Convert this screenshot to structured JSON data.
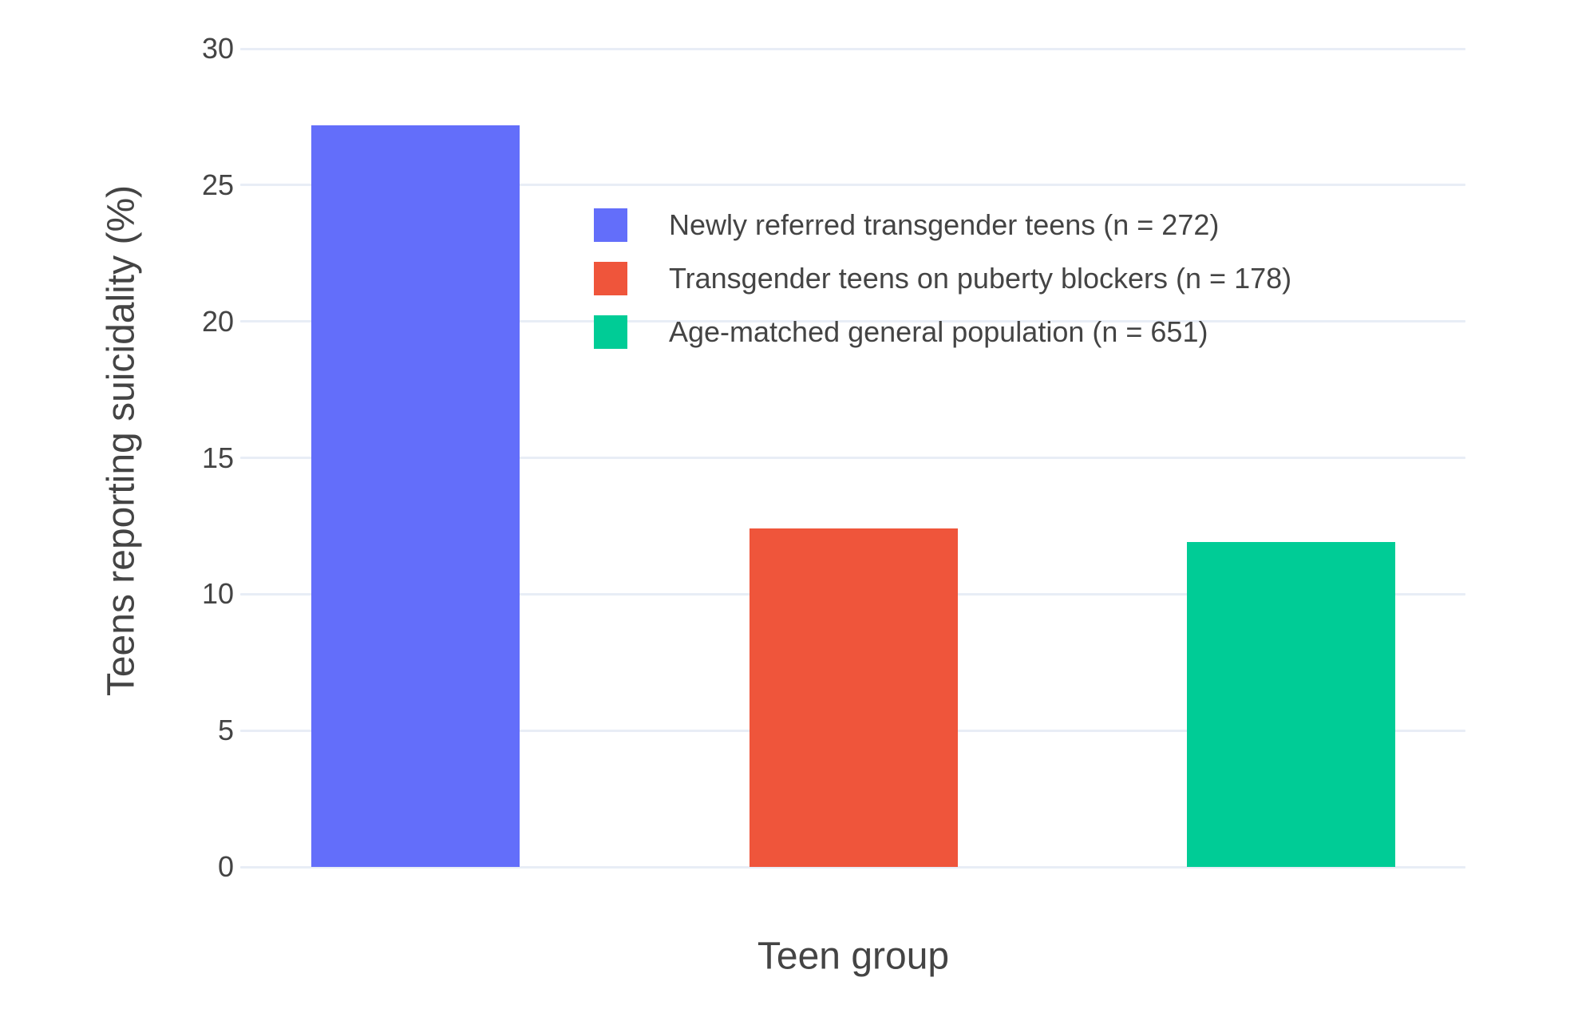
{
  "chart_data": {
    "type": "bar",
    "title": "",
    "xlabel": "Teen group",
    "ylabel": "Teens reporting suicidality (%)",
    "ylim": [
      0,
      30
    ],
    "yticks": [
      0,
      5,
      10,
      15,
      20,
      25,
      30
    ],
    "grid": true,
    "legend_position": "top-right-inside",
    "series": [
      {
        "label": "Newly referred transgender teens (n = 272)",
        "value": 27.2,
        "color": "#636EFA"
      },
      {
        "label": "Transgender teens on puberty blockers (n = 178)",
        "value": 12.4,
        "color": "#EF553B"
      },
      {
        "label": "Age-matched general population (n = 651)",
        "value": 11.9,
        "color": "#00CC96"
      }
    ],
    "style": {
      "grid_color": "#E8EDF6",
      "text_color": "#444444",
      "background": "#FFFFFF"
    }
  }
}
